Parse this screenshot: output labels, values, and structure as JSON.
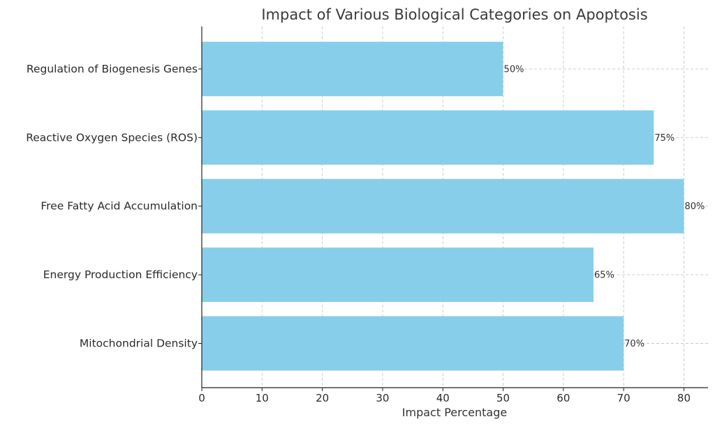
{
  "chart_data": {
    "type": "bar",
    "orientation": "horizontal",
    "title": "Impact of Various Biological Categories on Apoptosis",
    "xlabel": "Impact Percentage",
    "ylabel": "",
    "xlim": [
      0,
      84
    ],
    "xticks": [
      0,
      10,
      20,
      30,
      40,
      50,
      60,
      70,
      80
    ],
    "categories": [
      "Mitochondrial Density",
      "Energy Production Efficiency",
      "Free Fatty Acid Accumulation",
      "Reactive Oxygen Species (ROS)",
      "Regulation of Biogenesis Genes"
    ],
    "values": [
      70,
      65,
      80,
      75,
      50
    ],
    "data_labels": [
      "70%",
      "65%",
      "80%",
      "75%",
      "50%"
    ],
    "bar_color": "#87ceeb",
    "grid": true,
    "legend": "none"
  }
}
